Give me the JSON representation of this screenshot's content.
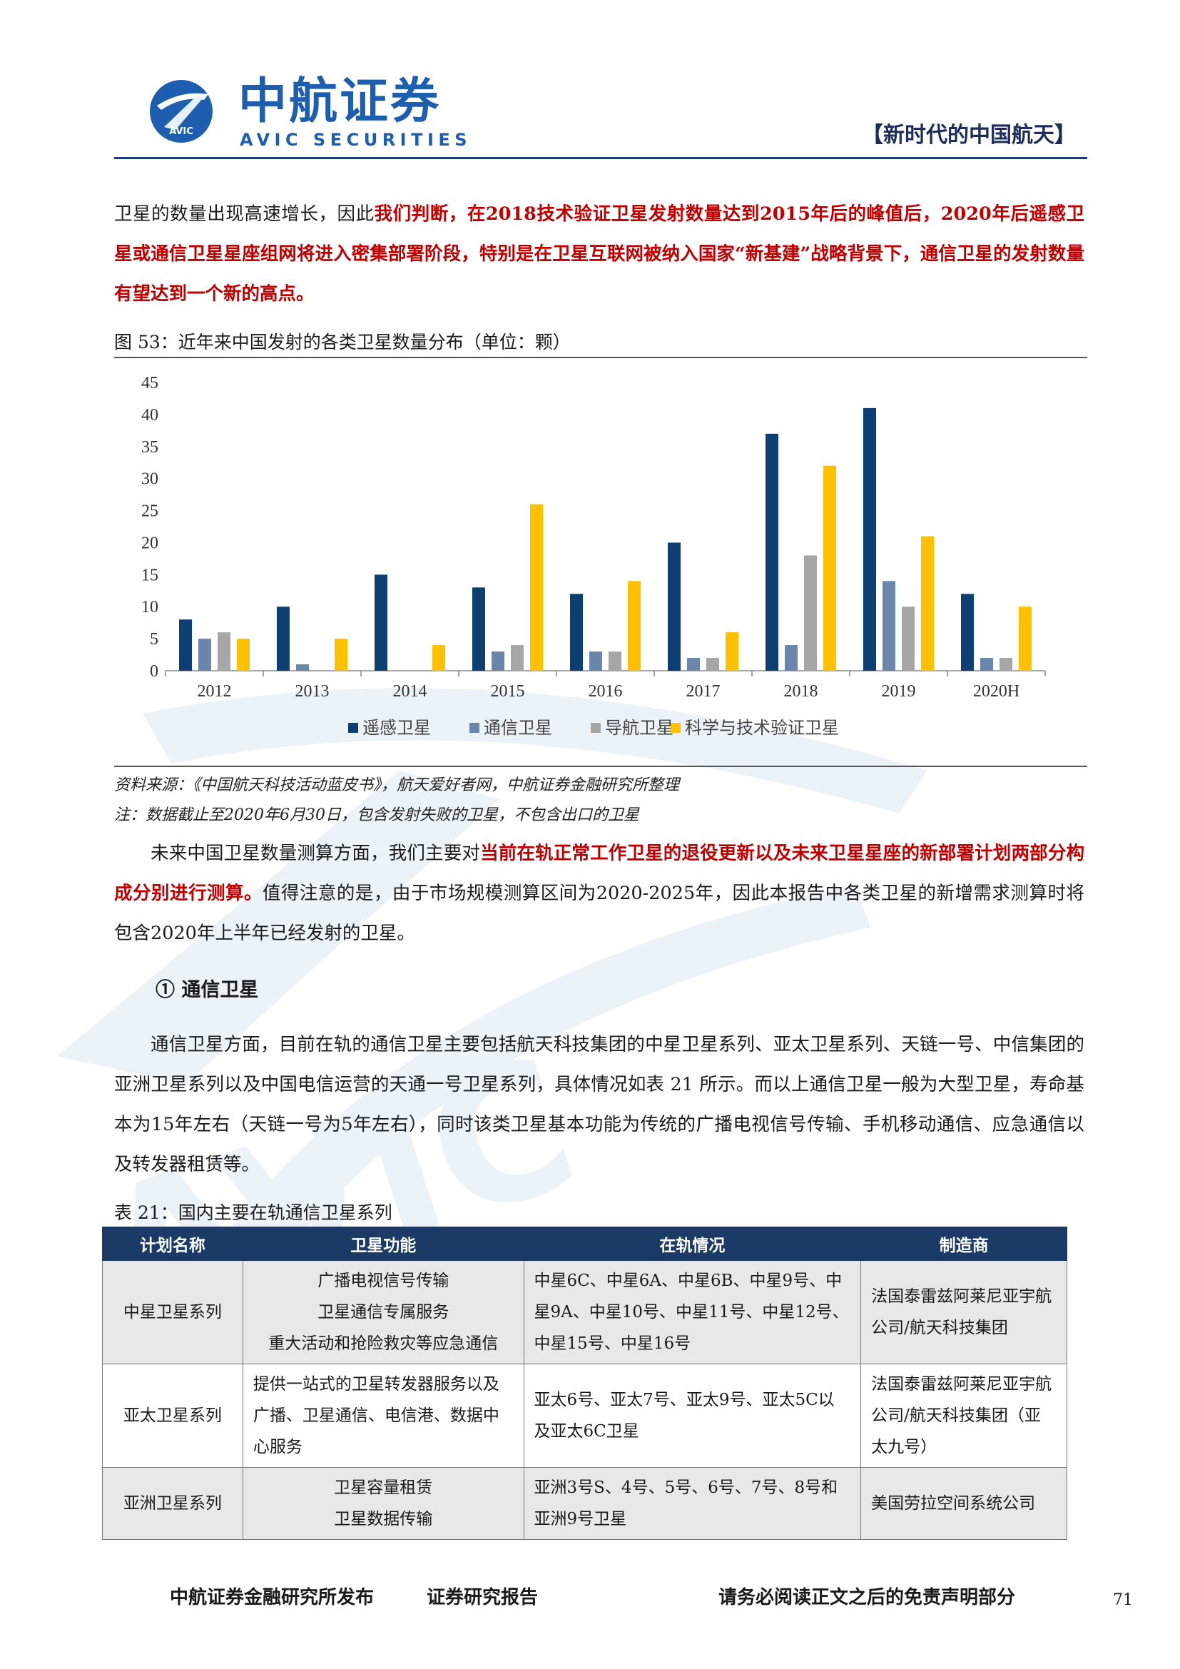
{
  "header": {
    "logo_cn": "中航证券",
    "logo_en": "AVIC SECURITIES",
    "logo_badge": "AVIC",
    "section_tag": "【新时代的中国航天】"
  },
  "intro_paragraph": {
    "plain": "卫星的数量出现高速增长，因此",
    "bold_red": "我们判断，在2018技术验证卫星发射数量达到2015年后的峰值后，2020年后遥感卫星或通信卫星星座组网将进入密集部署阶段，特别是在卫星互联网被纳入国家“新基建”战略背景下，通信卫星的发射数量有望达到一个新的高点。"
  },
  "figure": {
    "caption": "图 53：近年来中国发射的各类卫星数量分布（单位：颗）",
    "source": "资料来源：《中国航天科技活动蓝皮书》，航天爱好者网，中航证券金融研究所整理",
    "note": "注：数据截止至2020年6月30日，包含发射失败的卫星，不包含出口的卫星"
  },
  "chart_data": {
    "type": "bar",
    "categories": [
      "2012",
      "2013",
      "2014",
      "2015",
      "2016",
      "2017",
      "2018",
      "2019",
      "2020H"
    ],
    "series": [
      {
        "name": "遥感卫星",
        "color": "#0e3f73",
        "values": [
          8,
          10,
          15,
          13,
          12,
          20,
          37,
          41,
          12
        ]
      },
      {
        "name": "通信卫星",
        "color": "#6b86ad",
        "values": [
          5,
          1,
          0,
          3,
          3,
          2,
          4,
          14,
          2
        ]
      },
      {
        "name": "导航卫星",
        "color": "#a6a6a6",
        "values": [
          6,
          0,
          0,
          4,
          3,
          2,
          18,
          10,
          2
        ]
      },
      {
        "name": "科学与技术验证卫星",
        "color": "#ffc000",
        "values": [
          5,
          5,
          4,
          26,
          14,
          6,
          32,
          21,
          10
        ]
      }
    ],
    "yticks": [
      0,
      5,
      10,
      15,
      20,
      25,
      30,
      35,
      40,
      45
    ],
    "ylim": [
      0,
      45
    ],
    "legend_position": "bottom",
    "grid": false
  },
  "para2": {
    "plain1": "未来中国卫星数量测算方面，我们主要对",
    "bold_red": "当前在轨正常工作卫星的退役更新以及未来卫星星座的新部署计划两部分构成分别进行测算。",
    "plain2": "值得注意的是，由于市场规模测算区间为2020-2025年，因此本报告中各类卫星的新增需求测算时将包含2020年上半年已经发射的卫星。"
  },
  "section_heading": "① 通信卫星",
  "para3": "通信卫星方面，目前在轨的通信卫星主要包括航天科技集团的中星卫星系列、亚太卫星系列、天链一号、中信集团的亚洲卫星系列以及中国电信运营的天通一号卫星系列，具体情况如表 21 所示。而以上通信卫星一般为大型卫星，寿命基本为15年左右（天链一号为5年左右），同时该类卫星基本功能为传统的广播电视信号传输、手机移动通信、应急通信以及转发器租赁等。",
  "table": {
    "caption": "表 21：国内主要在轨通信卫星系列",
    "headers": [
      "计划名称",
      "卫星功能",
      "在轨情况",
      "制造商"
    ],
    "rows": [
      {
        "name": "中星卫星系列",
        "function": "广播电视信号传输\n卫星通信专属服务\n重大活动和抢险救灾等应急通信",
        "status": "中星6C、中星6A、中星6B、中星9号、中星9A、中星10号、中星11号、中星12号、中星15号、中星16号",
        "maker": "法国泰雷兹阿莱尼亚宇航公司/航天科技集团"
      },
      {
        "name": "亚太卫星系列",
        "function": "提供一站式的卫星转发器服务以及广播、卫星通信、电信港、数据中心服务",
        "status": "亚太6号、亚太7号、亚太9号、亚太5C以及亚太6C卫星",
        "maker": "法国泰雷兹阿莱尼亚宇航公司/航天科技集团（亚太九号）"
      },
      {
        "name": "亚洲卫星系列",
        "function": "卫星容量租赁\n卫星数据传输",
        "status": "亚洲3号S、4号、5号、6号、7号、8号和亚洲9号卫星",
        "maker": "美国劳拉空间系统公司"
      }
    ]
  },
  "footer": {
    "left": "中航证券金融研究所发布",
    "middle": "证券研究报告",
    "right": "请务必阅读正文之后的免责声明部分",
    "page": "71"
  }
}
